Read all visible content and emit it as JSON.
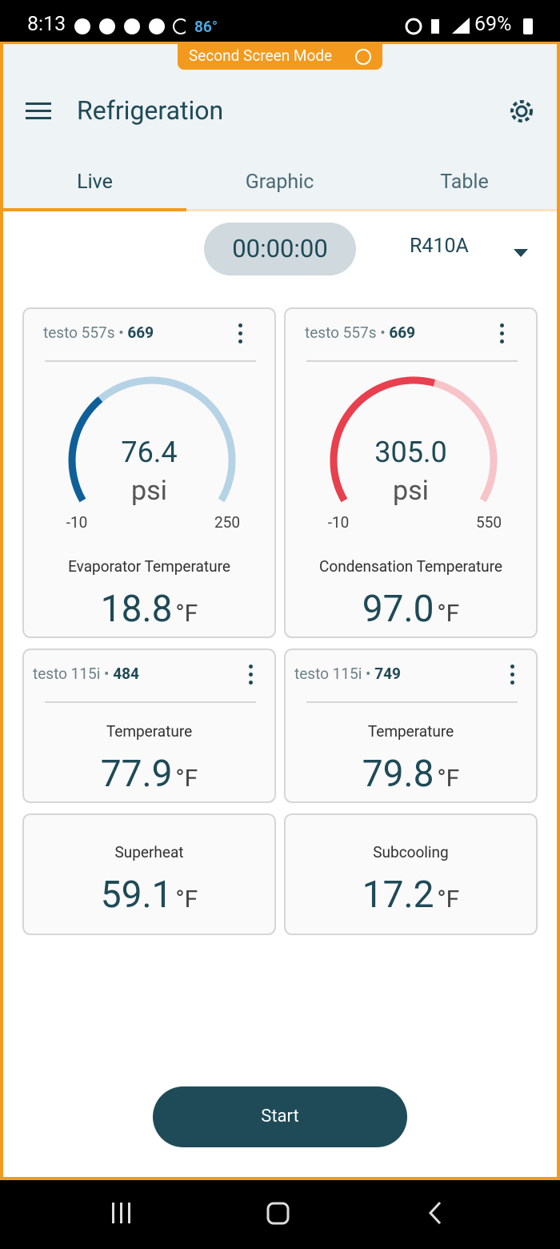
{
  "status_bar": {
    "time": "8:13",
    "temperature": "86°",
    "battery": "69%"
  },
  "banner": "Second Screen Mode",
  "header": {
    "title": "Refrigeration"
  },
  "tabs": [
    "Live",
    "Graphic",
    "Table"
  ],
  "timer": "00:00:00",
  "refrigerant": "R410A",
  "gauge_cards": [
    {
      "device": "testo 557s •",
      "serial": "669",
      "gauge": {
        "value": "76.4",
        "unit": "psi",
        "min": -10,
        "max": 250,
        "color": "#0f5f99",
        "track_color": "#b5d3e5"
      },
      "label": "Evaporator Temperature",
      "reading": "18.8",
      "unit": "°F"
    },
    {
      "device": "testo 557s •",
      "serial": "669",
      "gauge": {
        "value": "305.0",
        "unit": "psi",
        "min": -10,
        "max": 550,
        "color": "#e8404e",
        "track_color": "#f7c4c9"
      },
      "label": "Condensation Temperature",
      "reading": "97.0",
      "unit": "°F"
    }
  ],
  "sensor_cards": [
    {
      "device": "testo 115i •",
      "serial": "484",
      "label": "Temperature",
      "reading": "77.9",
      "unit": "°F"
    },
    {
      "device": "testo 115i •",
      "serial": "749",
      "label": "Temperature",
      "reading": "79.8",
      "unit": "°F"
    }
  ],
  "calc_cards": [
    {
      "label": "Superheat",
      "reading": "59.1",
      "unit": "°F"
    },
    {
      "label": "Subcooling",
      "reading": "17.2",
      "unit": "°F"
    }
  ],
  "button": "Start"
}
